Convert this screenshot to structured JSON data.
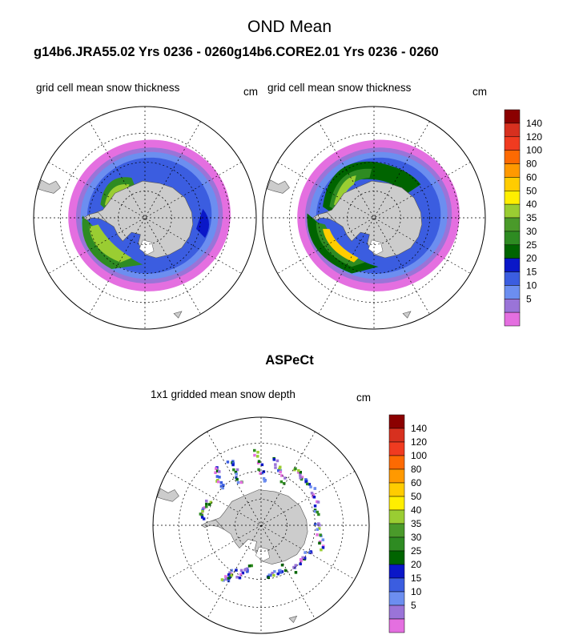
{
  "figure": {
    "title": "OND Mean",
    "runs_title": "g14b6.JRA55.02  Yrs 0236 - 0260g14b6.CORE2.01  Yrs 0236 - 0260",
    "aspect_title": "ASPeCt"
  },
  "panels": [
    {
      "name": "jra55-panel",
      "label": "grid cell mean snow thickness",
      "unit": "cm"
    },
    {
      "name": "core2-panel",
      "label": "grid cell mean snow thickness",
      "unit": "cm"
    },
    {
      "name": "aspect-panel",
      "label": "1x1 gridded mean snow depth",
      "unit": "cm"
    }
  ],
  "colorbar": {
    "labels": [
      "140",
      "120",
      "100",
      "80",
      "60",
      "50",
      "40",
      "35",
      "30",
      "25",
      "20",
      "15",
      "10",
      "5"
    ],
    "colors": [
      "#8b0000",
      "#d7301f",
      "#f03b20",
      "#fd6a02",
      "#ff9900",
      "#ffcc00",
      "#ffee00",
      "#9acd32",
      "#4a9a2a",
      "#2e8b22",
      "#006400",
      "#0a17c8",
      "#3b5de0",
      "#6c8ef0",
      "#9a74d8",
      "#e46fe0"
    ]
  },
  "colors": {
    "land": "#cccccc",
    "land_edge": "#555555",
    "ocean": "#ffffff",
    "graticule": "#000000"
  }
}
